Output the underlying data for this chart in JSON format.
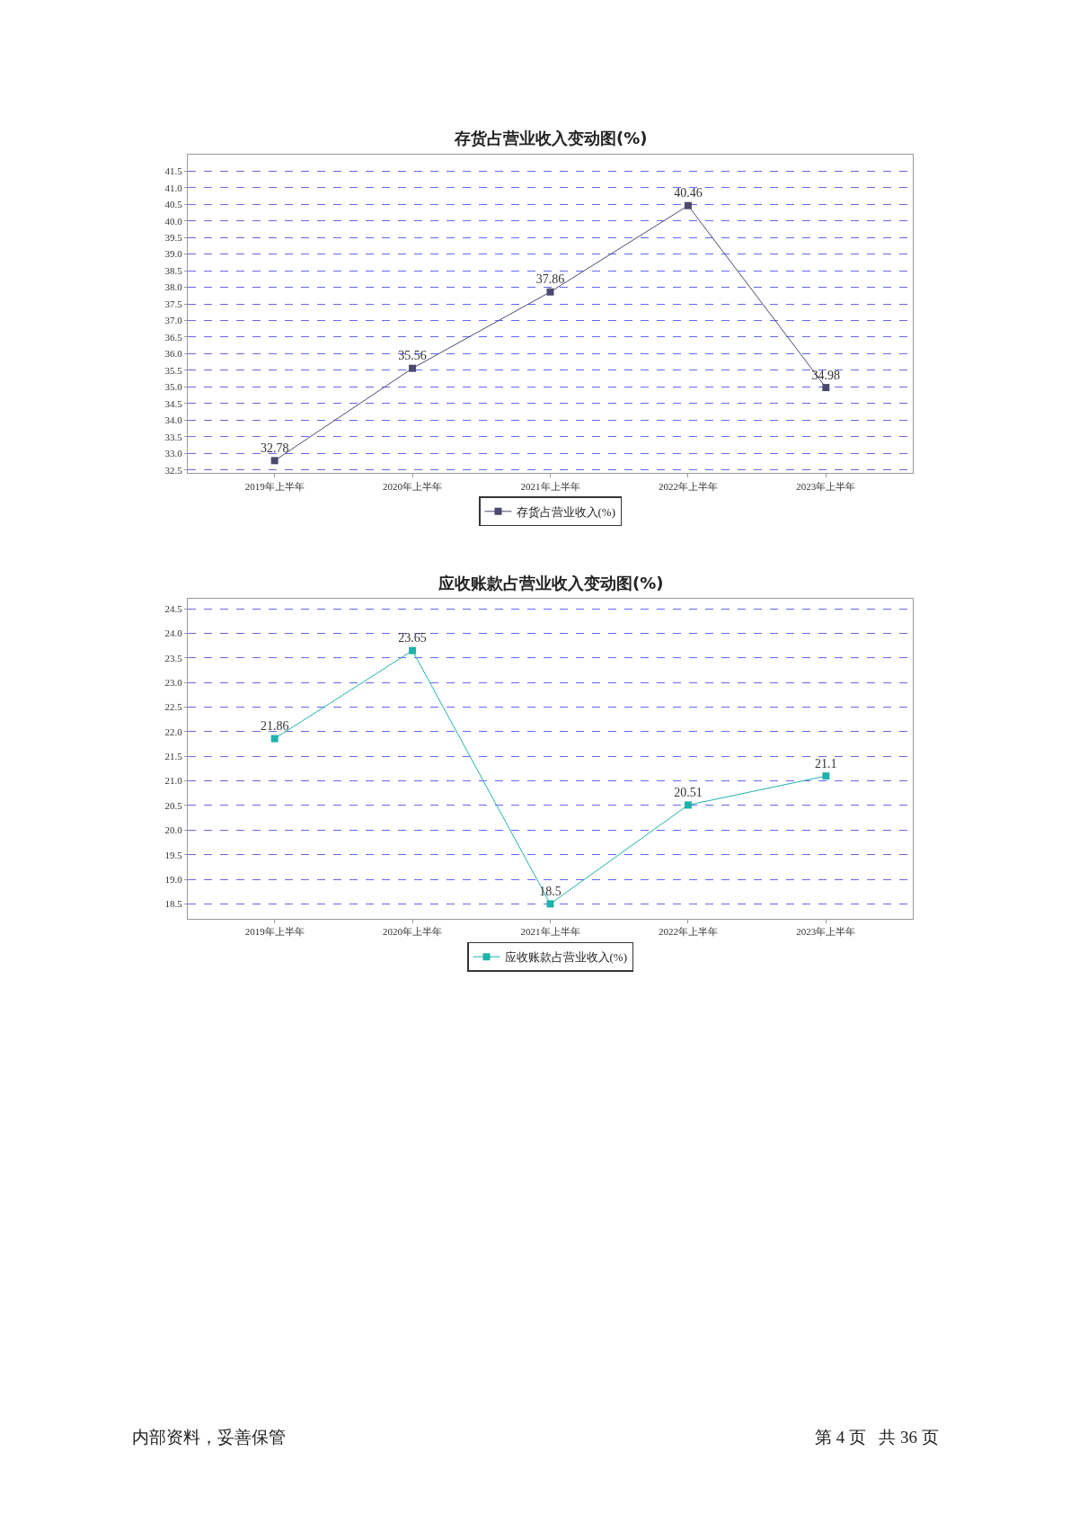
{
  "chart_data": [
    {
      "type": "line",
      "title": "存货占营业收入变动图(%)",
      "categories": [
        "2019年上半年",
        "2020年上半年",
        "2021年上半年",
        "2022年上半年",
        "2023年上半年"
      ],
      "series": [
        {
          "name": "存货占营业收入(%)",
          "color": "#4b4a6e",
          "values": [
            32.78,
            35.56,
            37.86,
            40.46,
            34.98
          ]
        }
      ],
      "ylim": [
        32.4,
        42.0
      ],
      "yticks": [
        32.5,
        {
          "value": 33,
          "label": "33.0"
        },
        33.5,
        {
          "value": 34,
          "label": "34.0"
        },
        34.5,
        {
          "value": 35,
          "label": "35.0"
        },
        35.5,
        {
          "value": 36,
          "label": "36.0"
        },
        36.5,
        {
          "value": 37,
          "label": "37.0"
        },
        37.5,
        {
          "value": 38,
          "label": "38.0"
        },
        38.5,
        {
          "value": 39,
          "label": "39.0"
        },
        39.5,
        {
          "value": 40,
          "label": "40.0"
        },
        40.5,
        {
          "value": 41,
          "label": "41.0"
        },
        41.5
      ],
      "grid": "y",
      "legend": "bottom",
      "marker": "square",
      "line_style": "solid",
      "data_labels": true
    },
    {
      "type": "line",
      "title": "应收账款占营业收入变动图(%)",
      "categories": [
        "2019年上半年",
        "2020年上半年",
        "2021年上半年",
        "2022年上半年",
        "2023年上半年"
      ],
      "series": [
        {
          "name": "应收账款占营业收入(%)",
          "color": "#20b2aa",
          "values": [
            21.86,
            23.65,
            18.5,
            20.51,
            21.1
          ]
        }
      ],
      "ylim": [
        18.2,
        24.7
      ],
      "yticks": [
        18.5,
        {
          "value": 19,
          "label": "19.0"
        },
        19.5,
        {
          "value": 20,
          "label": "20.0"
        },
        20.5,
        {
          "value": 21,
          "label": "21.0"
        },
        21.5,
        {
          "value": 22,
          "label": "22.0"
        },
        22.5,
        {
          "value": 23,
          "label": "23.0"
        },
        23.5,
        {
          "value": 24,
          "label": "24.0"
        },
        24.5
      ],
      "grid": "y",
      "legend": "bottom",
      "marker": "square",
      "line_style": "solid",
      "data_labels": true,
      "annotations": [
        "内部资料，妥善保管",
        "第 4 页   共 36 页"
      ]
    }
  ]
}
